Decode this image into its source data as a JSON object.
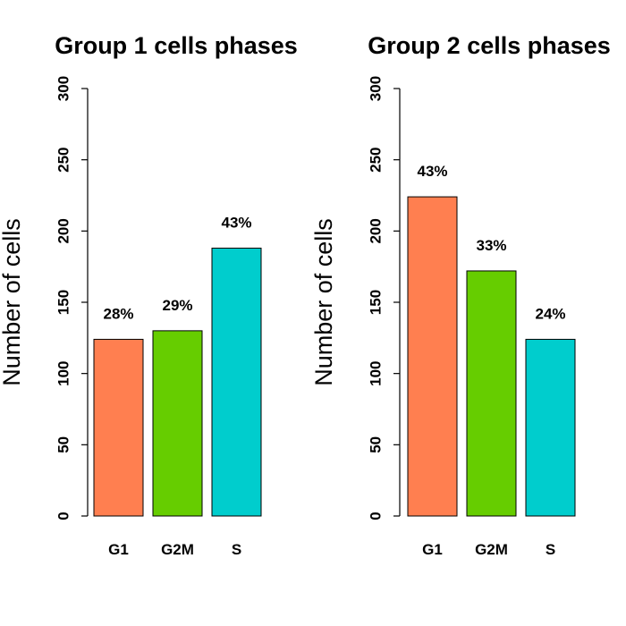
{
  "chart_data": [
    {
      "type": "bar",
      "title": "Group 1 cells phases",
      "ylabel": "Number of cells",
      "xlabel": "",
      "categories": [
        "G1",
        "G2M",
        "S"
      ],
      "values": [
        124,
        130,
        188
      ],
      "data_labels": [
        "28%",
        "29%",
        "43%"
      ],
      "colors": [
        "#FF7F50",
        "#66CD00",
        "#00CDCD"
      ],
      "ylim": [
        0,
        300
      ],
      "yticks": [
        0,
        50,
        100,
        150,
        200,
        250,
        300
      ],
      "grid": false
    },
    {
      "type": "bar",
      "title": "Group 2 cells phases",
      "ylabel": "Number of cells",
      "xlabel": "",
      "categories": [
        "G1",
        "G2M",
        "S"
      ],
      "values": [
        224,
        172,
        124
      ],
      "data_labels": [
        "43%",
        "33%",
        "24%"
      ],
      "colors": [
        "#FF7F50",
        "#66CD00",
        "#00CDCD"
      ],
      "ylim": [
        0,
        300
      ],
      "yticks": [
        0,
        50,
        100,
        150,
        200,
        250,
        300
      ],
      "grid": false
    }
  ]
}
